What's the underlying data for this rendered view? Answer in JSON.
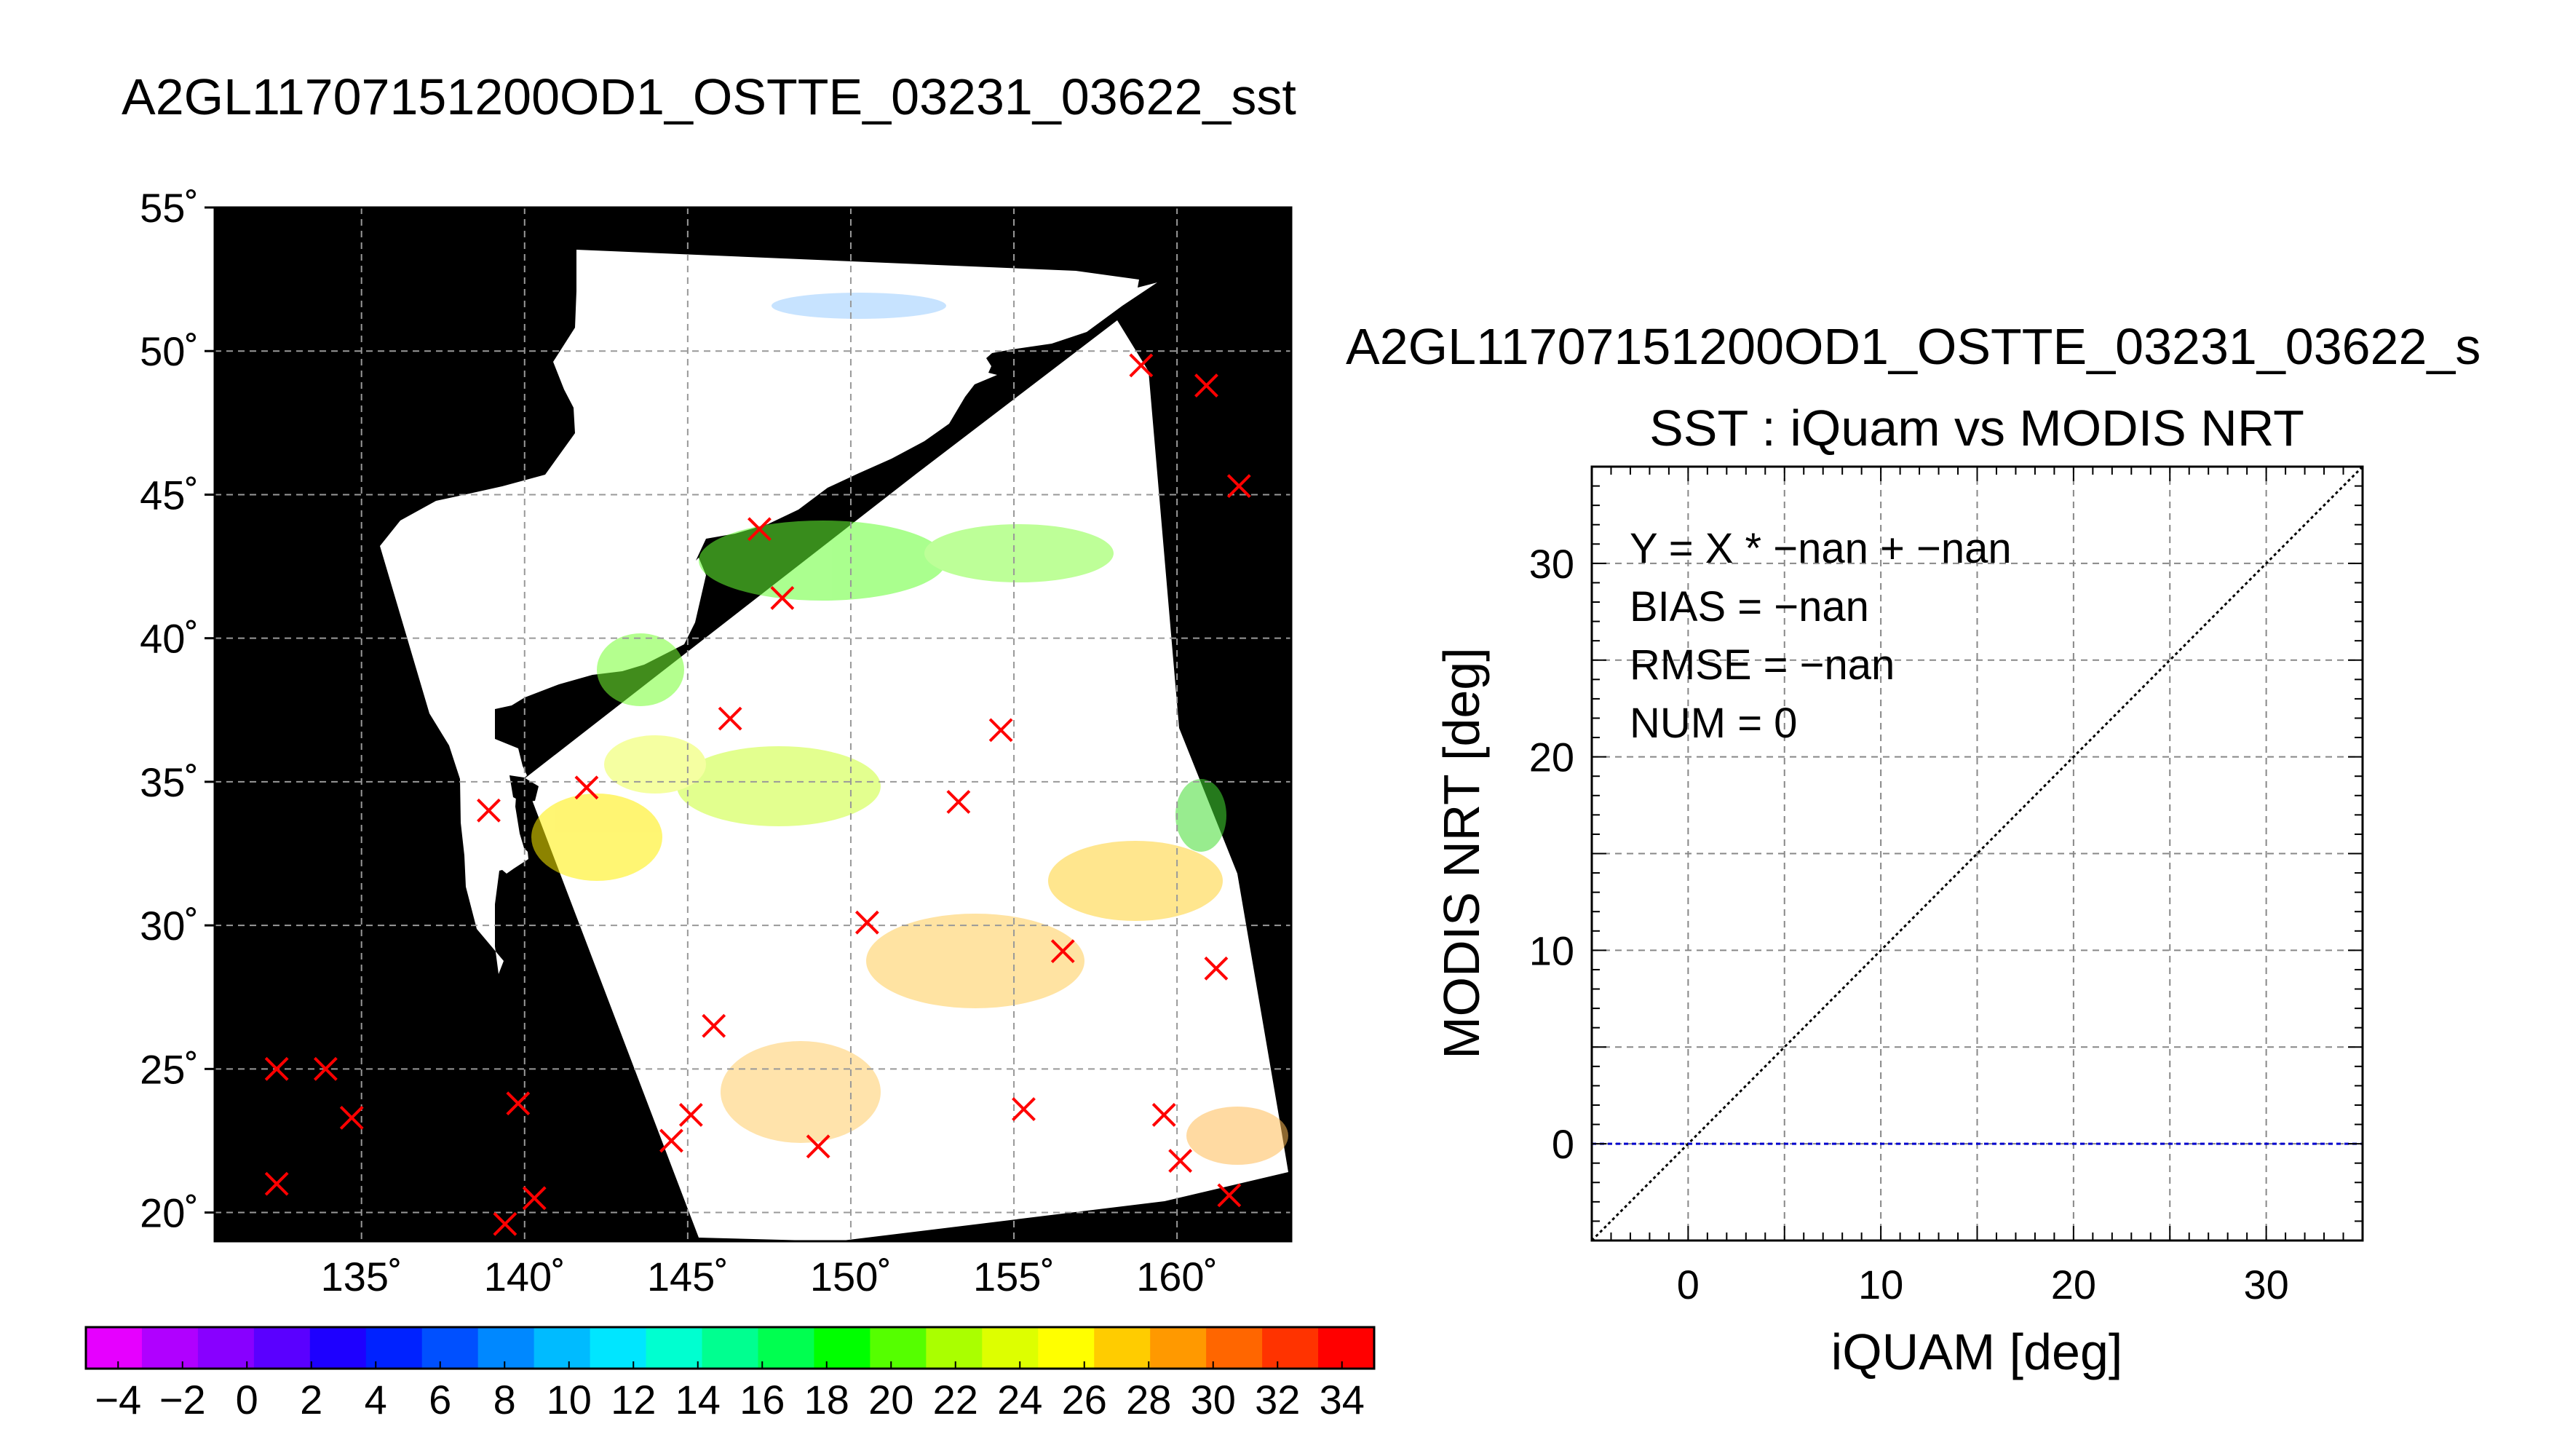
{
  "chart_data": [
    {
      "type": "map",
      "title": "A2GL11707151200OD1_OSTTE_03231_03622_sst",
      "lon_range": [
        130.5,
        163.5
      ],
      "lat_range": [
        19,
        55
      ],
      "lon_ticks": [
        135,
        140,
        145,
        150,
        155,
        160
      ],
      "lat_ticks": [
        20,
        25,
        30,
        35,
        40,
        45,
        50,
        55
      ],
      "grid": true,
      "background": "land/no-data shown black, swath shown white with SST-colored retrievals",
      "markers": {
        "symbol": "x",
        "color": "#ff0000",
        "points": [
          [
            132.4,
            25.0
          ],
          [
            133.9,
            25.0
          ],
          [
            134.7,
            23.3
          ],
          [
            132.4,
            21.0
          ],
          [
            139.8,
            23.8
          ],
          [
            139.4,
            19.6
          ],
          [
            140.3,
            20.5
          ],
          [
            138.9,
            34.0
          ],
          [
            141.9,
            34.8
          ],
          [
            145.8,
            26.5
          ],
          [
            145.1,
            23.4
          ],
          [
            144.5,
            22.5
          ],
          [
            149.0,
            22.3
          ],
          [
            150.5,
            30.1
          ],
          [
            146.3,
            37.2
          ],
          [
            147.9,
            41.4
          ],
          [
            147.2,
            43.8
          ],
          [
            153.3,
            34.3
          ],
          [
            154.6,
            36.8
          ],
          [
            156.5,
            29.1
          ],
          [
            155.3,
            23.6
          ],
          [
            159.6,
            23.4
          ],
          [
            160.1,
            21.8
          ],
          [
            161.6,
            20.6
          ],
          [
            161.2,
            28.5
          ],
          [
            158.9,
            49.5
          ],
          [
            160.9,
            48.8
          ],
          [
            161.9,
            45.3
          ]
        ]
      }
    },
    {
      "type": "colorbar",
      "range": [
        -5,
        35
      ],
      "step": 2,
      "tick_labels": [
        "−4",
        "−2",
        "0",
        "2",
        "4",
        "6",
        "8",
        "10",
        "12",
        "14",
        "16",
        "18",
        "20",
        "22",
        "24",
        "26",
        "28",
        "30",
        "32",
        "34"
      ],
      "colors": [
        "#e600ff",
        "#b000ff",
        "#8800ff",
        "#5a00ff",
        "#1e00ff",
        "#0022ff",
        "#0050ff",
        "#0088ff",
        "#00bbff",
        "#00e6ff",
        "#00ffd0",
        "#00ff90",
        "#00ff50",
        "#00ff00",
        "#55ff00",
        "#aaff00",
        "#ddff00",
        "#ffff00",
        "#ffcc00",
        "#ff9900",
        "#ff6600",
        "#ff3300",
        "#ff0000"
      ]
    },
    {
      "type": "scatter",
      "title": "A2GL11707151200OD1_OSTTE_03231_03622_s",
      "subtitle": "SST : iQuam vs MODIS NRT",
      "xlabel": "iQUAM [deg]",
      "ylabel": "MODIS NRT [deg]",
      "xlim": [
        -5,
        35
      ],
      "ylim": [
        -5,
        35
      ],
      "xticks": [
        0,
        10,
        20,
        30
      ],
      "yticks": [
        0,
        10,
        20,
        30
      ],
      "grid": true,
      "grid_step": 5,
      "points": [],
      "stats": [
        "Y = X * −nan + −nan",
        "BIAS = −nan",
        "RMSE = −nan",
        "NUM = 0"
      ],
      "lines": [
        {
          "kind": "one-to-one",
          "color": "#000000",
          "style": "dotted"
        },
        {
          "kind": "zero-line",
          "y": 0,
          "color": "#0000cc",
          "style": "dashed"
        }
      ]
    }
  ]
}
